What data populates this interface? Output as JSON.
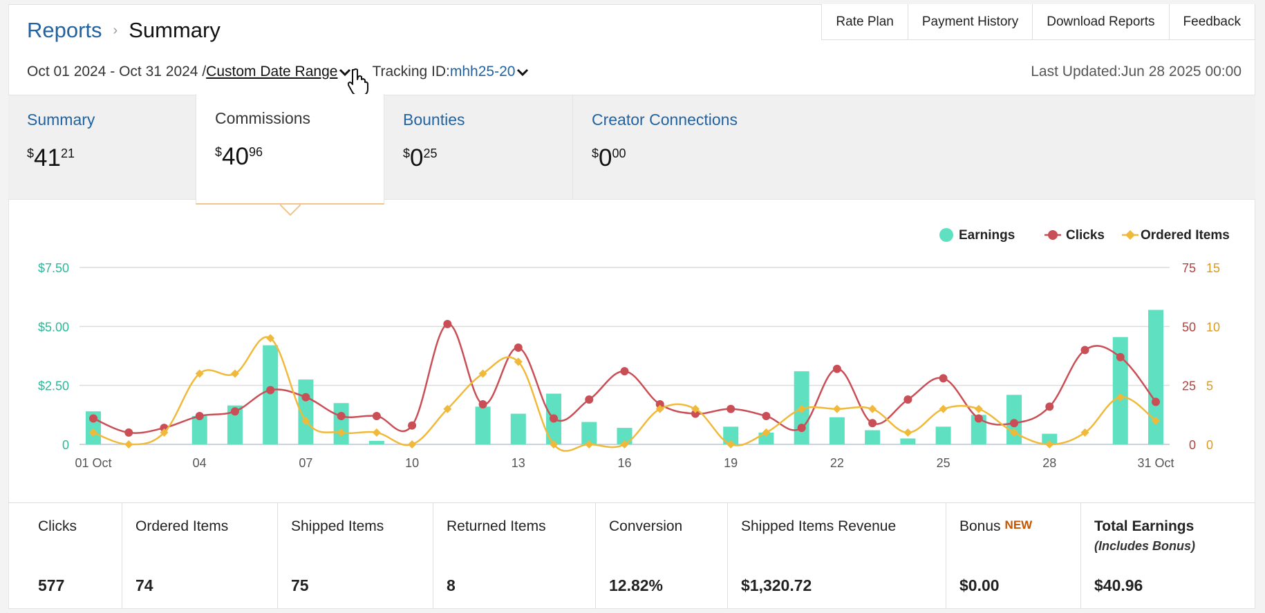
{
  "breadcrumb": {
    "parent": "Reports",
    "current": "Summary"
  },
  "top_links": [
    "Rate Plan",
    "Payment History",
    "Download Reports",
    "Feedback"
  ],
  "filters": {
    "date_text": "Oct 01 2024 - Oct 31 2024 /",
    "range_link": "Custom Date Range",
    "tracking_label": "Tracking ID:",
    "tracking_value": "mhh25-20",
    "last_updated": "Last Updated:Jun 28 2025 00:00"
  },
  "tabs": [
    {
      "title": "Summary",
      "currency": "$",
      "whole": "41",
      "cents": "21",
      "active": false
    },
    {
      "title": "Commissions",
      "currency": "$",
      "whole": "40",
      "cents": "96",
      "active": true
    },
    {
      "title": "Bounties",
      "currency": "$",
      "whole": "0",
      "cents": "25",
      "active": false
    },
    {
      "title": "Creator Connections",
      "currency": "$",
      "whole": "0",
      "cents": "00",
      "active": false
    }
  ],
  "chart_data": {
    "type": "bar",
    "x": [
      "01 Oct",
      "02",
      "03",
      "04",
      "05",
      "06",
      "07",
      "08",
      "09",
      "10",
      "11",
      "12",
      "13",
      "14",
      "15",
      "16",
      "17",
      "18",
      "19",
      "20",
      "21",
      "22",
      "23",
      "24",
      "25",
      "26",
      "27",
      "28",
      "29",
      "30",
      "31 Oct"
    ],
    "x_tick_labels": [
      "01 Oct",
      "04",
      "07",
      "10",
      "13",
      "16",
      "19",
      "22",
      "25",
      "28",
      "31 Oct"
    ],
    "series": [
      {
        "name": "Earnings",
        "type": "bar",
        "axis": "left",
        "color": "#5ee0c1",
        "values": [
          1.4,
          0,
          0,
          1.2,
          1.65,
          4.2,
          2.75,
          1.75,
          0.15,
          0,
          0,
          1.6,
          1.3,
          2.15,
          0.95,
          0.7,
          0,
          0,
          0.75,
          0.5,
          3.1,
          1.15,
          0.6,
          0.25,
          0.75,
          1.25,
          2.1,
          0.45,
          0,
          4.55,
          5.7
        ]
      },
      {
        "name": "Clicks",
        "type": "line",
        "axis": "right1",
        "color": "#c94e55",
        "values": [
          11,
          5,
          7,
          12,
          14,
          23,
          20,
          12,
          12,
          8,
          51,
          17,
          41,
          11,
          19,
          31,
          17,
          13,
          15,
          12,
          7,
          32,
          9,
          19,
          28,
          11,
          9,
          16,
          40,
          37,
          18
        ]
      },
      {
        "name": "Ordered Items",
        "type": "line",
        "axis": "right2",
        "color": "#f0b93a",
        "values": [
          1,
          0,
          1,
          6,
          6,
          9,
          2,
          1,
          1,
          0,
          3,
          6,
          7,
          0,
          0,
          0,
          3,
          3,
          0,
          1,
          3,
          3,
          3,
          1,
          3,
          3,
          1,
          0,
          1,
          4,
          2
        ]
      }
    ],
    "y_left": {
      "ticks": [
        "$7.50",
        "$5.00",
        "$2.50",
        "0"
      ],
      "range": [
        0,
        7.5
      ]
    },
    "y_right1": {
      "ticks": [
        "75",
        "50",
        "25",
        "0"
      ],
      "range": [
        0,
        75
      ]
    },
    "y_right2": {
      "ticks": [
        "15",
        "10",
        "5",
        "0"
      ],
      "range": [
        0,
        15
      ]
    },
    "legend_position": "top-right",
    "grid": true
  },
  "colors": {
    "earnings": "#5ee0c1",
    "clicks": "#c94e55",
    "ordered": "#f0b93a",
    "link": "#2162a1"
  },
  "stats": [
    {
      "label": "Clicks",
      "value": "577"
    },
    {
      "label": "Ordered Items",
      "value": "74"
    },
    {
      "label": "Shipped Items",
      "value": "75"
    },
    {
      "label": "Returned Items",
      "value": "8"
    },
    {
      "label": "Conversion",
      "value": "12.82%"
    },
    {
      "label": "Shipped Items Revenue",
      "value": "$1,320.72"
    },
    {
      "label": "Bonus",
      "badge": "NEW",
      "value": "$0.00"
    },
    {
      "label": "Total Earnings",
      "sub": "(Includes Bonus)",
      "value": "$40.96"
    }
  ]
}
